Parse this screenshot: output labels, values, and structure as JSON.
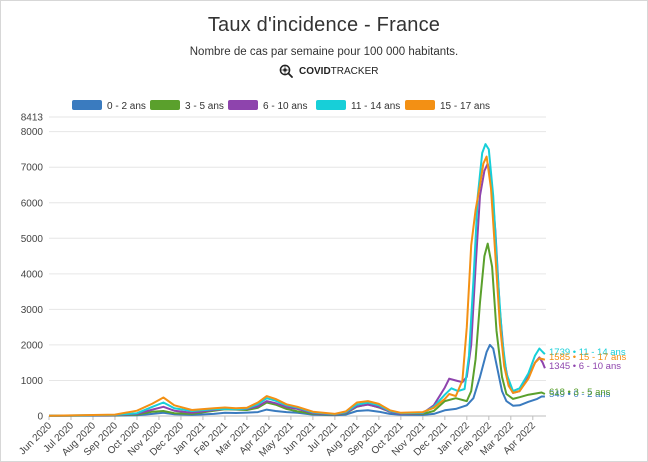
{
  "title": "Taux d'incidence - France",
  "subtitle": "Nombre de cas par semaine pour 100 000 habitants.",
  "brand": {
    "strong": "COVID",
    "light": "TRACKER",
    "icon": "magnifier-virus-icon"
  },
  "chart_data": {
    "type": "line",
    "title": "Taux d'incidence - France",
    "subtitle": "Nombre de cas par semaine pour 100 000 habitants.",
    "ylim": [
      0,
      8413
    ],
    "y_max_label": "8413",
    "y_ticks": [
      "0",
      "1000",
      "2000",
      "3000",
      "4000",
      "5000",
      "6000",
      "7000",
      "8000"
    ],
    "x_ticks": [
      "Jun 2020",
      "Jul 2020",
      "Aug 2020",
      "Sep 2020",
      "Oct 2020",
      "Nov 2020",
      "Dec 2020",
      "Jan 2021",
      "Feb 2021",
      "Mar 2021",
      "Apr 2021",
      "May 2021",
      "Jun 2021",
      "Jul 2021",
      "Aug 2021",
      "Sep 2021",
      "Oct 2021",
      "Nov 2021",
      "Dec 2021",
      "Jan 2022",
      "Feb 2022",
      "Mar 2022",
      "Apr 2022"
    ],
    "x_range": [
      0,
      22.6
    ],
    "grid": true,
    "legend_position": "top",
    "series": [
      {
        "name": "0 - 2 ans",
        "color": "#3a7bbf",
        "end_label": "549 • 0 - 2 ans",
        "points": [
          [
            0,
            5
          ],
          [
            3,
            10
          ],
          [
            4,
            20
          ],
          [
            4.7,
            60
          ],
          [
            5.2,
            90
          ],
          [
            5.7,
            50
          ],
          [
            6.5,
            30
          ],
          [
            7.5,
            60
          ],
          [
            8,
            90
          ],
          [
            8.5,
            85
          ],
          [
            9,
            95
          ],
          [
            9.5,
            110
          ],
          [
            9.9,
            180
          ],
          [
            10.3,
            140
          ],
          [
            10.8,
            110
          ],
          [
            11.3,
            90
          ],
          [
            12,
            40
          ],
          [
            13,
            20
          ],
          [
            13.5,
            40
          ],
          [
            14,
            140
          ],
          [
            14.5,
            160
          ],
          [
            15,
            120
          ],
          [
            15.5,
            60
          ],
          [
            16,
            35
          ],
          [
            17,
            30
          ],
          [
            17.5,
            60
          ],
          [
            18,
            160
          ],
          [
            18.5,
            200
          ],
          [
            19,
            300
          ],
          [
            19.3,
            500
          ],
          [
            19.6,
            1100
          ],
          [
            19.9,
            1800
          ],
          [
            20.05,
            2000
          ],
          [
            20.2,
            1900
          ],
          [
            20.4,
            1300
          ],
          [
            20.6,
            700
          ],
          [
            20.8,
            420
          ],
          [
            21.1,
            290
          ],
          [
            21.4,
            300
          ],
          [
            21.8,
            400
          ],
          [
            22.2,
            480
          ],
          [
            22.4,
            550
          ],
          [
            22.55,
            549
          ]
        ]
      },
      {
        "name": "3 - 5 ans",
        "color": "#5aa02c",
        "end_label": "618 • 3 - 5 ans",
        "points": [
          [
            0,
            5
          ],
          [
            3,
            15
          ],
          [
            4,
            40
          ],
          [
            4.7,
            120
          ],
          [
            5.2,
            140
          ],
          [
            5.7,
            80
          ],
          [
            6.5,
            60
          ],
          [
            7.5,
            150
          ],
          [
            8,
            190
          ],
          [
            8.5,
            180
          ],
          [
            9,
            170
          ],
          [
            9.5,
            230
          ],
          [
            9.9,
            380
          ],
          [
            10.3,
            320
          ],
          [
            10.8,
            200
          ],
          [
            11.3,
            130
          ],
          [
            12,
            60
          ],
          [
            13,
            30
          ],
          [
            13.5,
            80
          ],
          [
            14,
            260
          ],
          [
            14.5,
            330
          ],
          [
            15,
            240
          ],
          [
            15.5,
            120
          ],
          [
            16,
            60
          ],
          [
            17,
            60
          ],
          [
            17.5,
            140
          ],
          [
            18,
            420
          ],
          [
            18.5,
            500
          ],
          [
            19,
            420
          ],
          [
            19.2,
            700
          ],
          [
            19.4,
            1600
          ],
          [
            19.6,
            3200
          ],
          [
            19.8,
            4500
          ],
          [
            19.95,
            4850
          ],
          [
            20.15,
            4200
          ],
          [
            20.35,
            2400
          ],
          [
            20.6,
            1100
          ],
          [
            20.8,
            620
          ],
          [
            21.1,
            480
          ],
          [
            21.4,
            530
          ],
          [
            21.8,
            600
          ],
          [
            22.2,
            640
          ],
          [
            22.4,
            660
          ],
          [
            22.55,
            618
          ]
        ]
      },
      {
        "name": "6 - 10 ans",
        "color": "#8e44ad",
        "end_label": "1345 • 6 - 10 ans",
        "points": [
          [
            0,
            5
          ],
          [
            3,
            20
          ],
          [
            4,
            60
          ],
          [
            4.7,
            180
          ],
          [
            5.2,
            260
          ],
          [
            5.7,
            150
          ],
          [
            6.5,
            90
          ],
          [
            7.5,
            170
          ],
          [
            8,
            200
          ],
          [
            8.5,
            190
          ],
          [
            9,
            200
          ],
          [
            9.5,
            270
          ],
          [
            9.9,
            420
          ],
          [
            10.3,
            360
          ],
          [
            10.8,
            250
          ],
          [
            11.3,
            200
          ],
          [
            12,
            80
          ],
          [
            13,
            40
          ],
          [
            13.5,
            90
          ],
          [
            14,
            270
          ],
          [
            14.5,
            320
          ],
          [
            15,
            250
          ],
          [
            15.5,
            120
          ],
          [
            16,
            60
          ],
          [
            17,
            80
          ],
          [
            17.5,
            300
          ],
          [
            18,
            800
          ],
          [
            18.2,
            1050
          ],
          [
            18.5,
            1000
          ],
          [
            18.8,
            950
          ],
          [
            19,
            1100
          ],
          [
            19.2,
            2000
          ],
          [
            19.4,
            4200
          ],
          [
            19.6,
            6200
          ],
          [
            19.8,
            6900
          ],
          [
            19.95,
            7100
          ],
          [
            20.1,
            6700
          ],
          [
            20.3,
            5200
          ],
          [
            20.5,
            3000
          ],
          [
            20.7,
            1600
          ],
          [
            20.9,
            900
          ],
          [
            21.1,
            650
          ],
          [
            21.4,
            700
          ],
          [
            21.8,
            1100
          ],
          [
            22.1,
            1500
          ],
          [
            22.3,
            1650
          ],
          [
            22.45,
            1500
          ],
          [
            22.55,
            1345
          ]
        ]
      },
      {
        "name": "11 - 14 ans",
        "color": "#17cfd8",
        "end_label": "1739 • 11 - 14 ans",
        "points": [
          [
            0,
            5
          ],
          [
            3,
            30
          ],
          [
            4,
            80
          ],
          [
            4.7,
            260
          ],
          [
            5.2,
            380
          ],
          [
            5.7,
            220
          ],
          [
            6.5,
            140
          ],
          [
            7.5,
            190
          ],
          [
            8,
            200
          ],
          [
            8.5,
            190
          ],
          [
            9,
            210
          ],
          [
            9.5,
            330
          ],
          [
            9.9,
            500
          ],
          [
            10.3,
            430
          ],
          [
            10.8,
            300
          ],
          [
            11.3,
            240
          ],
          [
            12,
            100
          ],
          [
            13,
            50
          ],
          [
            13.5,
            110
          ],
          [
            14,
            320
          ],
          [
            14.5,
            380
          ],
          [
            15,
            300
          ],
          [
            15.5,
            140
          ],
          [
            16,
            80
          ],
          [
            17,
            90
          ],
          [
            17.5,
            260
          ],
          [
            18,
            600
          ],
          [
            18.3,
            780
          ],
          [
            18.6,
            700
          ],
          [
            18.9,
            760
          ],
          [
            19.1,
            1700
          ],
          [
            19.3,
            3800
          ],
          [
            19.5,
            6200
          ],
          [
            19.7,
            7400
          ],
          [
            19.85,
            7650
          ],
          [
            20,
            7500
          ],
          [
            20.2,
            6200
          ],
          [
            20.4,
            4000
          ],
          [
            20.6,
            2200
          ],
          [
            20.8,
            1200
          ],
          [
            21.1,
            700
          ],
          [
            21.4,
            780
          ],
          [
            21.8,
            1200
          ],
          [
            22.1,
            1700
          ],
          [
            22.3,
            1900
          ],
          [
            22.45,
            1800
          ],
          [
            22.55,
            1739
          ]
        ]
      },
      {
        "name": "15 - 17 ans",
        "color": "#f39014",
        "end_label": "1585 • 15 - 17 ans",
        "points": [
          [
            0,
            5
          ],
          [
            3,
            40
          ],
          [
            4,
            150
          ],
          [
            4.7,
            350
          ],
          [
            5.2,
            520
          ],
          [
            5.7,
            300
          ],
          [
            6.5,
            170
          ],
          [
            7.5,
            220
          ],
          [
            8,
            240
          ],
          [
            8.5,
            220
          ],
          [
            9,
            230
          ],
          [
            9.5,
            380
          ],
          [
            9.9,
            560
          ],
          [
            10.3,
            480
          ],
          [
            10.8,
            330
          ],
          [
            11.3,
            260
          ],
          [
            12,
            120
          ],
          [
            13,
            60
          ],
          [
            13.5,
            130
          ],
          [
            14,
            380
          ],
          [
            14.5,
            420
          ],
          [
            15,
            340
          ],
          [
            15.5,
            160
          ],
          [
            16,
            90
          ],
          [
            17,
            110
          ],
          [
            17.5,
            230
          ],
          [
            18,
            480
          ],
          [
            18.2,
            620
          ],
          [
            18.5,
            560
          ],
          [
            18.8,
            1000
          ],
          [
            19,
            2500
          ],
          [
            19.2,
            4800
          ],
          [
            19.4,
            5800
          ],
          [
            19.6,
            6500
          ],
          [
            19.75,
            7100
          ],
          [
            19.9,
            7300
          ],
          [
            20.1,
            6400
          ],
          [
            20.3,
            4500
          ],
          [
            20.5,
            2600
          ],
          [
            20.7,
            1400
          ],
          [
            20.9,
            850
          ],
          [
            21.1,
            650
          ],
          [
            21.4,
            700
          ],
          [
            21.8,
            1050
          ],
          [
            22.1,
            1500
          ],
          [
            22.3,
            1620
          ],
          [
            22.45,
            1600
          ],
          [
            22.55,
            1585
          ]
        ]
      }
    ]
  }
}
